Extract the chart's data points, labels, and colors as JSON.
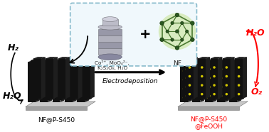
{
  "bg_color": "#ffffff",
  "left_label": "NF@P-S450",
  "right_label": "NF@P-S450\n@FeOOH",
  "arrow_label": "Electrodeposition",
  "h2_text": "H₂",
  "h2o_text": "H₂O",
  "h2o_right": "H₂O",
  "o2_text": "O₂",
  "chem_text": "Co²⁺, MoO₄²⁻,\nK₂S₂O₈, H₂O",
  "nf_text": "NF",
  "rod_color_left": "#111111",
  "rod_color_right": "#111111",
  "rod_top_color": "#2a2a2a",
  "dot_color": "#d4c800",
  "base_top_color": "#c8c8c8",
  "base_side_color": "#a0a0a0",
  "box_edge_color": "#88bbcc",
  "box_face_color": "#f0f8fc",
  "cylinder_body": "#9898a8",
  "cylinder_rib": "#b0b0bc",
  "cylinder_top": "#bcbcc8",
  "nf_face_color": "#d8ecc0",
  "nf_edge_color": "#4a7830",
  "nf_node_color": "#2a5820"
}
